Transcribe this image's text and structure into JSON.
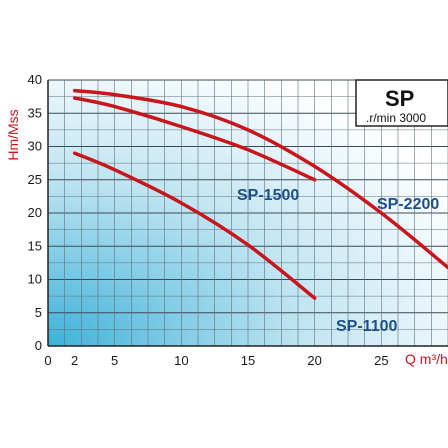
{
  "chart_data": {
    "type": "line",
    "title": "SP",
    "subtitle": ".r/min 3000",
    "xlabel": "Q m³/h",
    "ylabel": "Hm/Mss",
    "xlim": [
      0,
      30
    ],
    "ylim": [
      0,
      40
    ],
    "x_ticks": [
      "0",
      "2",
      "5",
      "10",
      "15",
      "20",
      "25"
    ],
    "y_ticks": [
      "0",
      "5",
      "10",
      "15",
      "20",
      "25",
      "30",
      "35",
      "40"
    ],
    "grid": true,
    "colors": {
      "curve": "#c8161d",
      "label": "#1d4f8c",
      "axis_title": "#c8161d",
      "gradient": "#3eb1d8"
    },
    "series": [
      {
        "name": "SP-1100",
        "x": [
          2,
          5,
          10,
          15,
          20
        ],
        "y": [
          29,
          26.5,
          21.5,
          15.2,
          7.2
        ]
      },
      {
        "name": "SP-1500",
        "x": [
          2,
          5,
          10,
          15,
          20
        ],
        "y": [
          37.3,
          36,
          33,
          29.5,
          25
        ]
      },
      {
        "name": "SP-2200",
        "x": [
          2,
          5,
          10,
          15,
          20,
          25,
          30
        ],
        "y": [
          38.4,
          37.8,
          36,
          32.5,
          27,
          20,
          11.8
        ]
      }
    ]
  }
}
